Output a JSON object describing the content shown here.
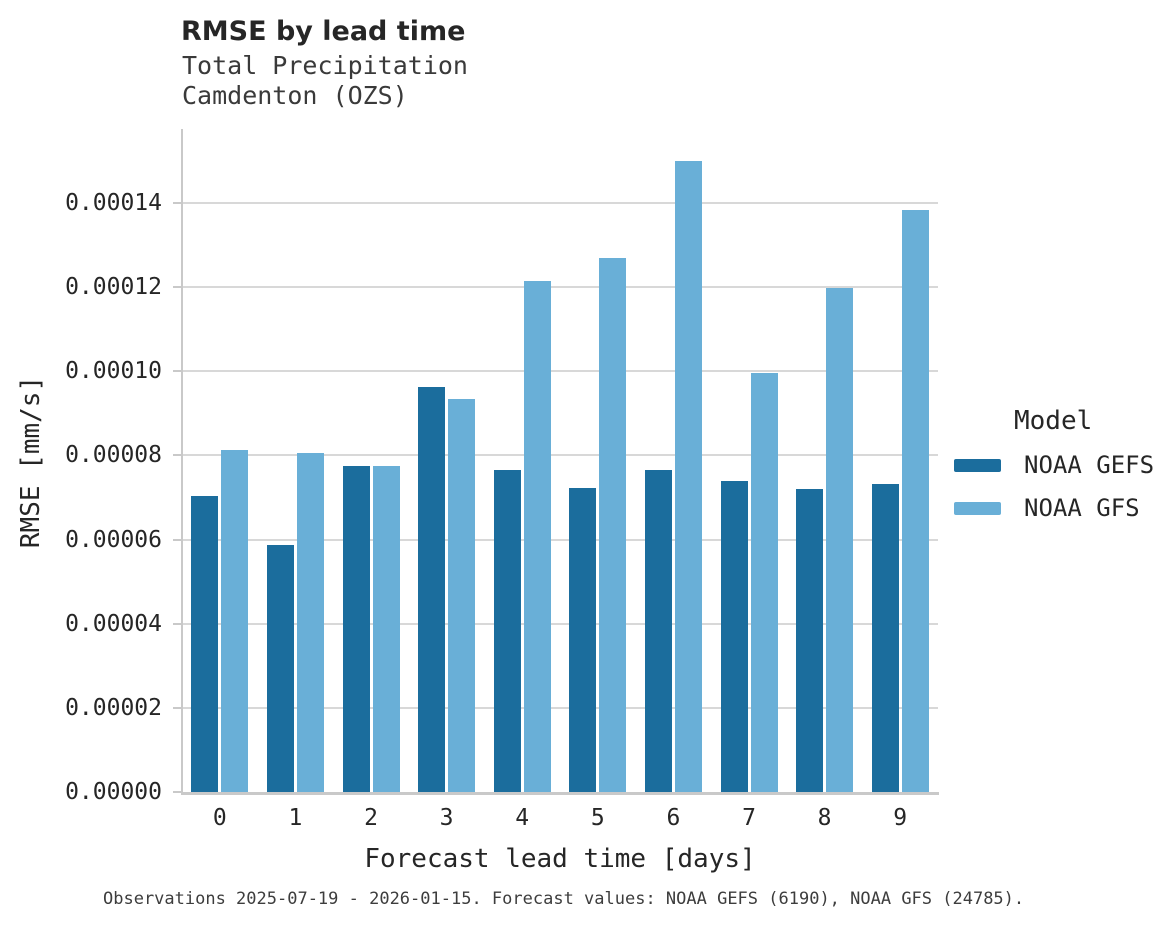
{
  "chart_data": {
    "type": "bar",
    "title": "RMSE by lead time",
    "subtitle_lines": [
      "Total Precipitation",
      "Camdenton (OZS)"
    ],
    "xlabel": "Forecast lead time [days]",
    "ylabel": "RMSE [mm/s]",
    "categories": [
      "0",
      "1",
      "2",
      "3",
      "4",
      "5",
      "6",
      "7",
      "8",
      "9"
    ],
    "series": [
      {
        "name": "NOAA GEFS",
        "color": "#1b6d9d",
        "values": [
          7.03e-05,
          5.87e-05,
          7.76e-05,
          9.62e-05,
          7.65e-05,
          7.23e-05,
          7.65e-05,
          7.39e-05,
          7.2e-05,
          7.32e-05
        ]
      },
      {
        "name": "NOAA GFS",
        "color": "#69afd7",
        "values": [
          8.13e-05,
          8.07e-05,
          7.76e-05,
          9.35e-05,
          0.0001215,
          0.000127,
          0.00015,
          9.95e-05,
          0.0001198,
          0.0001383
        ]
      }
    ],
    "ylim": [
      0,
      0.0001576
    ],
    "yticks": {
      "values": [
        0,
        2e-05,
        4e-05,
        6e-05,
        8e-05,
        0.0001,
        0.00012,
        0.00014
      ],
      "labels": [
        "0.00000",
        "0.00002",
        "0.00004",
        "0.00006",
        "0.00008",
        "0.00010",
        "0.00012",
        "0.00014"
      ]
    },
    "grid": "horizontal",
    "legend": {
      "title": "Model",
      "position": "right"
    },
    "footer": "Observations 2025-07-19 - 2026-01-15. Forecast values: NOAA GEFS (6190), NOAA GFS (24785)."
  },
  "colors": {
    "background": "#ffffff",
    "grid": "#d8d8d8",
    "spine": "#c9c9c9",
    "title_text": "#262626",
    "subtitle_text": "#3a3a3a",
    "tick_text": "#262626",
    "footer_text": "#3d3d3d"
  }
}
